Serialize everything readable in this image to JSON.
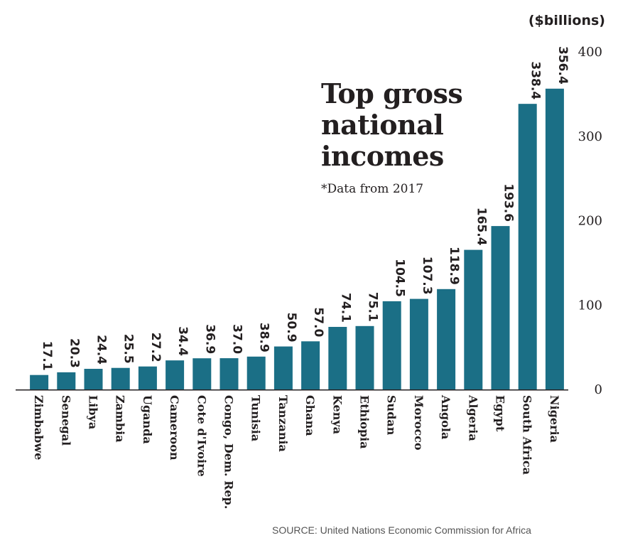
{
  "chart_data": {
    "type": "bar",
    "title": "Top gross national incomes",
    "subtitle": "*Data from 2017",
    "unit_label": "($billions)",
    "source": "SOURCE: United Nations Economic Commission for Africa",
    "categories": [
      "Zimbabwe",
      "Senegal",
      "Libya",
      "Zambia",
      "Uganda",
      "Cameroon",
      "Cote d'Ivoire",
      "Congo, Dem. Rep.",
      "Tunisia",
      "Tanzania",
      "Ghana",
      "Kenya",
      "Ethiopia",
      "Sudan",
      "Morocco",
      "Angola",
      "Algeria",
      "Egypt",
      "South Africa",
      "Nigeria"
    ],
    "values": [
      17.1,
      20.3,
      24.4,
      25.5,
      27.2,
      34.4,
      36.9,
      37.0,
      38.9,
      50.9,
      57.0,
      74.1,
      75.1,
      104.5,
      107.3,
      118.9,
      165.4,
      193.6,
      338.4,
      356.4
    ],
    "value_labels": [
      "17.1",
      "20.3",
      "24.4",
      "25.5",
      "27.2",
      "34.4",
      "36.9",
      "37.0",
      "38.9",
      "50.9",
      "57.0",
      "74.1",
      "75.1",
      "104.5",
      "107.3",
      "118.9",
      "165.4",
      "193.6",
      "338.4",
      "356.4"
    ],
    "yticks": [
      "0",
      "100",
      "200",
      "300",
      "400"
    ],
    "ylim": [
      0,
      400
    ],
    "y_axis_side": "right",
    "bar_color": "#1b6f86",
    "grid": false
  }
}
